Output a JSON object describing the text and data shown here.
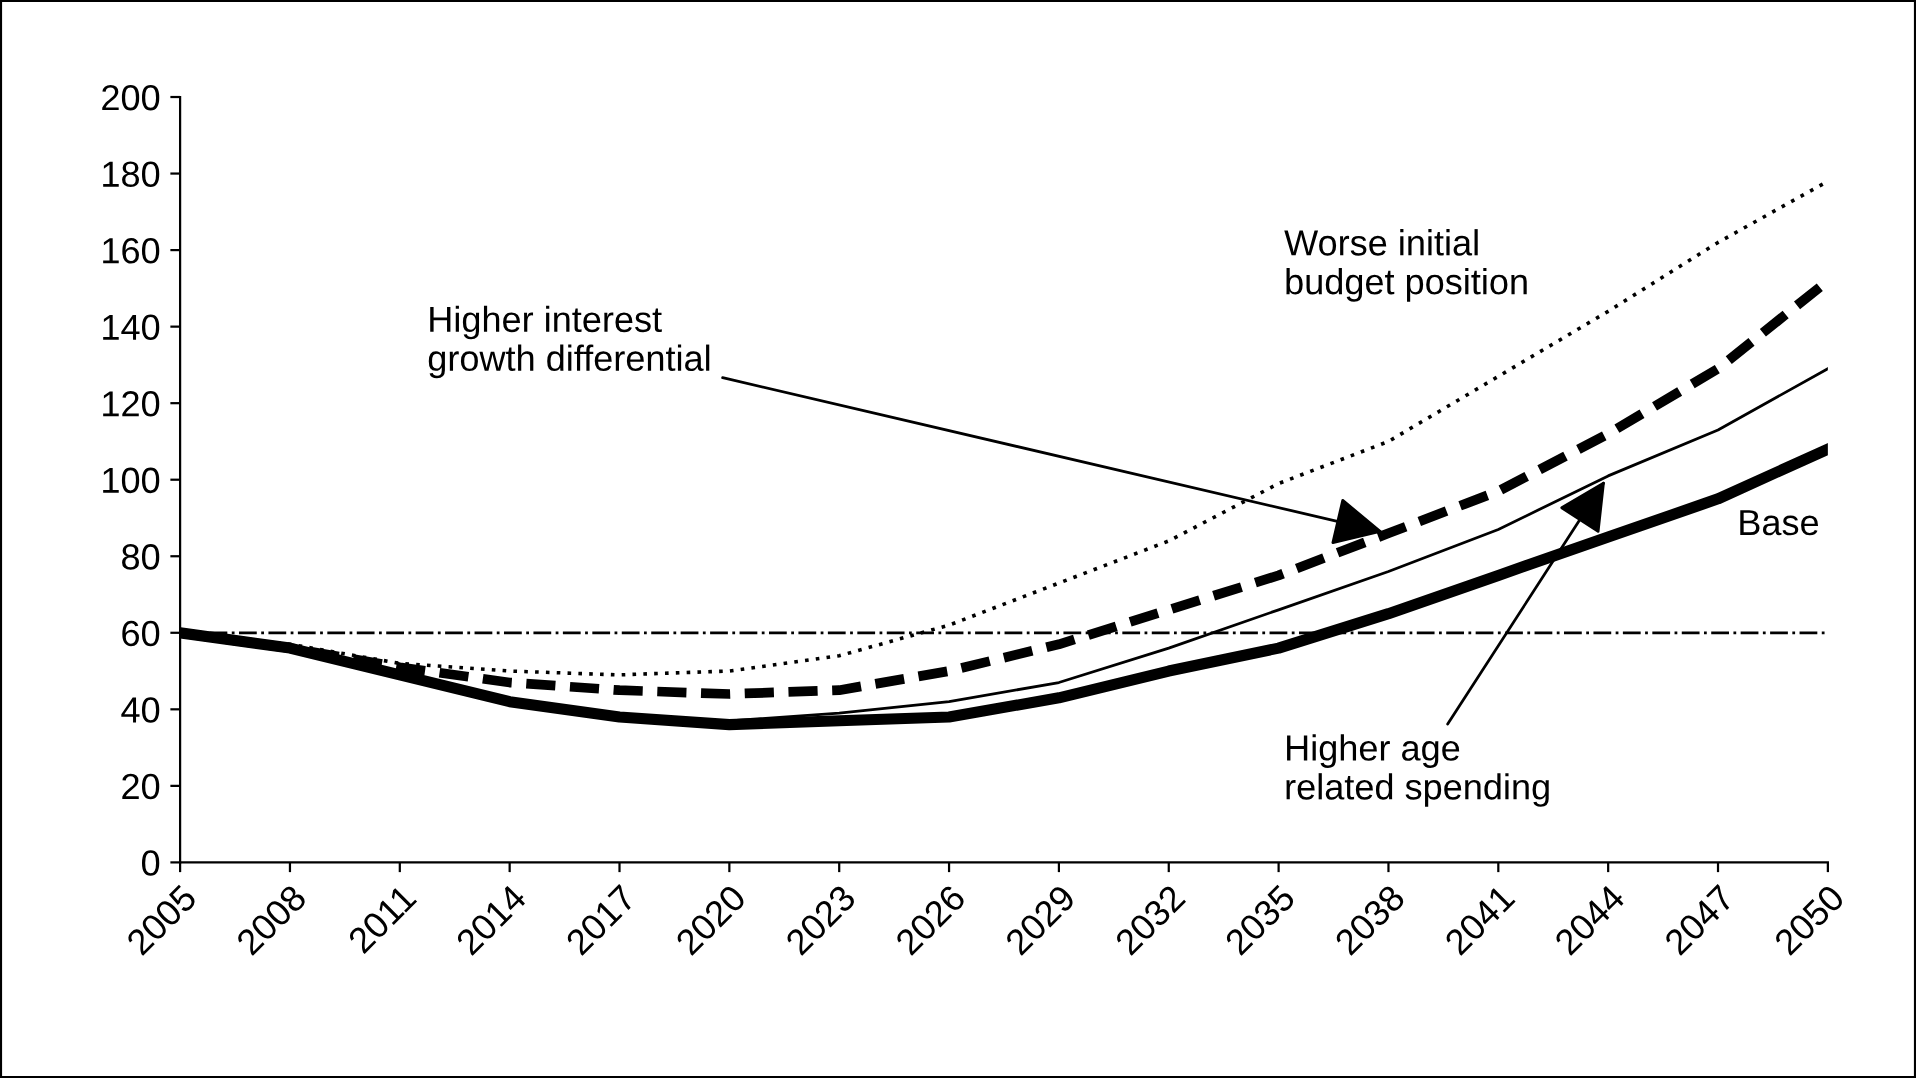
{
  "chart_data": {
    "type": "line",
    "x": [
      2005,
      2008,
      2011,
      2014,
      2017,
      2020,
      2023,
      2026,
      2029,
      2032,
      2035,
      2038,
      2041,
      2044,
      2047,
      2050
    ],
    "series": [
      {
        "color": "#000000",
        "line_style": "solid",
        "values": [
          60,
          56,
          49,
          42,
          38,
          36,
          37,
          38,
          43,
          50,
          56,
          65,
          75,
          85,
          95,
          108
        ]
      },
      {
        "color": "#000000",
        "line_style": "solid",
        "values": [
          60,
          56,
          49,
          42,
          38,
          37,
          39,
          42,
          47,
          56,
          66,
          76,
          87,
          101,
          113,
          129
        ]
      },
      {
        "color": "#000000",
        "line_style": "dashed",
        "values": [
          60,
          56,
          51,
          47,
          45,
          44,
          45,
          50,
          57,
          66,
          75,
          86,
          97,
          112,
          129,
          152
        ]
      },
      {
        "color": "#000000",
        "line_style": "dotted",
        "values": [
          60,
          57,
          52,
          50,
          49,
          50,
          54,
          62,
          73,
          84,
          99,
          110,
          127,
          144,
          162,
          178
        ]
      }
    ],
    "xlim": [
      2005,
      2050
    ],
    "xticks": [
      2005,
      2008,
      2011,
      2014,
      2017,
      2020,
      2023,
      2026,
      2029,
      2032,
      2035,
      2038,
      2041,
      2044,
      2047,
      2050
    ],
    "ylim": [
      0,
      200
    ],
    "yticks": [
      0,
      20,
      40,
      60,
      80,
      100,
      120,
      140,
      160,
      180,
      200
    ],
    "ref_lines": [
      {
        "axis": "y",
        "value": 60,
        "label": null,
        "color": "#000000",
        "line_style": "dashdot"
      }
    ],
    "annotations": [
      {
        "text": "Higher interest\ngrowth differential",
        "x": 2038,
        "y": 86
      },
      {
        "text": "Worse initial\nbudget position",
        "x": 2044,
        "y": 144
      },
      {
        "text": "Base",
        "x": 2050,
        "y": 108
      },
      {
        "text": "Higher age\nrelated spending",
        "x": 2044,
        "y": 101
      }
    ],
    "grid": false,
    "legend": false
  }
}
